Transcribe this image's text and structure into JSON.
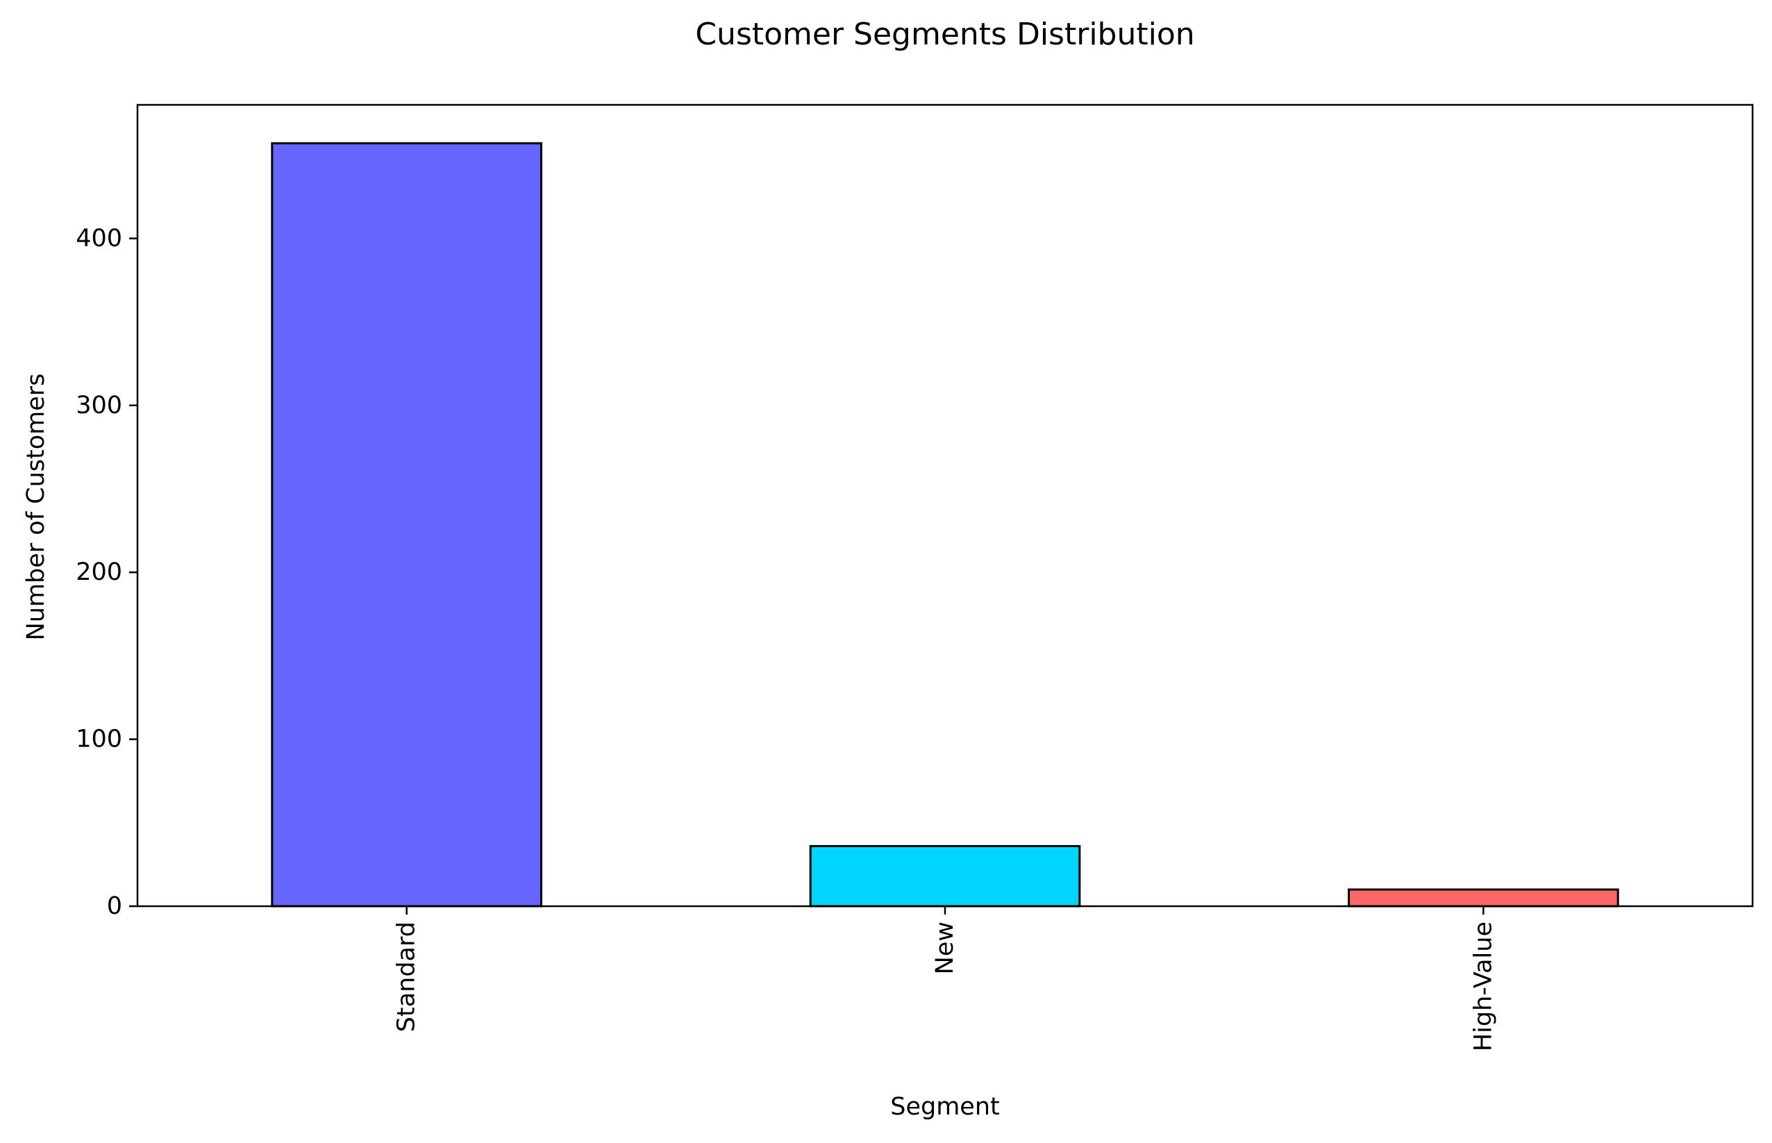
{
  "chart_data": {
    "type": "bar",
    "title": "Customer Segments Distribution",
    "xlabel": "Segment",
    "ylabel": "Number of Customers",
    "categories": [
      "Standard",
      "New",
      "High-Value"
    ],
    "values": [
      457,
      36,
      10
    ],
    "bar_colors": [
      "#6666ff",
      "#00d4ff",
      "#ff6666"
    ],
    "edge_color": "#000000",
    "ylim": [
      0,
      480
    ],
    "yticks": [
      0,
      100,
      200,
      300,
      400
    ],
    "ytick_labels": [
      "0",
      "100",
      "200",
      "300",
      "400"
    ],
    "xtick_rotation": "vertical",
    "grid": false,
    "legend": "none"
  }
}
